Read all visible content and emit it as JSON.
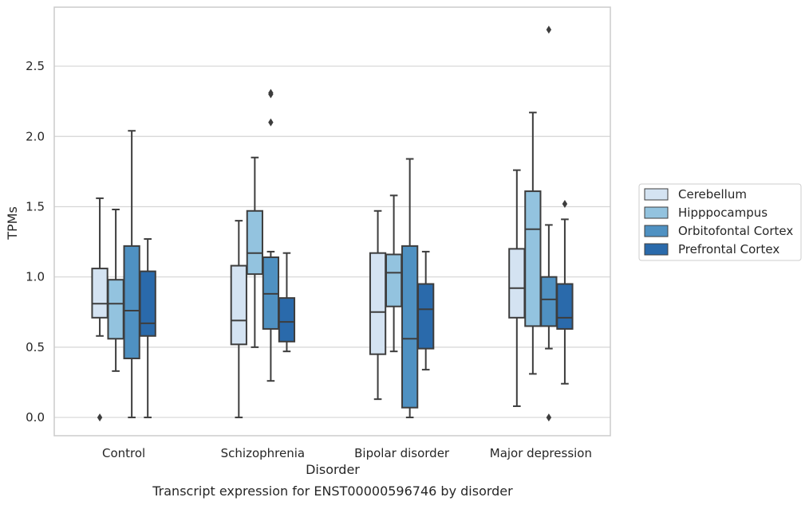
{
  "caption": "Transcript expression for ENST00000596746 by disorder",
  "chart_data": {
    "type": "box",
    "title": "",
    "xlabel": "Disorder",
    "ylabel": "TPMs",
    "ylim": [
      -0.13,
      2.92
    ],
    "yticks": [
      0.0,
      0.5,
      1.0,
      1.5,
      2.0,
      2.5
    ],
    "ytick_labels": [
      "0.0",
      "0.5",
      "1.0",
      "1.5",
      "2.0",
      "2.5"
    ],
    "grid": "horizontal",
    "legend_position": "right",
    "categories": [
      "Control",
      "Schizophrenia",
      "Bipolar disorder",
      "Major depression"
    ],
    "series": [
      {
        "name": "Cerebellum",
        "color": "#d4e3f2",
        "boxes": [
          {
            "whislo": 0.58,
            "q1": 0.71,
            "med": 0.81,
            "q3": 1.06,
            "whishi": 1.56,
            "fliers": [
              0.0
            ]
          },
          {
            "whislo": 0.0,
            "q1": 0.52,
            "med": 0.69,
            "q3": 1.08,
            "whishi": 1.4,
            "fliers": []
          },
          {
            "whislo": 0.13,
            "q1": 0.45,
            "med": 0.75,
            "q3": 1.17,
            "whishi": 1.47,
            "fliers": []
          },
          {
            "whislo": 0.08,
            "q1": 0.71,
            "med": 0.92,
            "q3": 1.2,
            "whishi": 1.76,
            "fliers": []
          }
        ]
      },
      {
        "name": "Hipppocampus",
        "color": "#93c3df",
        "boxes": [
          {
            "whislo": 0.33,
            "q1": 0.56,
            "med": 0.81,
            "q3": 0.98,
            "whishi": 1.48,
            "fliers": []
          },
          {
            "whislo": 0.5,
            "q1": 1.02,
            "med": 1.17,
            "q3": 1.47,
            "whishi": 1.85,
            "fliers": []
          },
          {
            "whislo": 0.47,
            "q1": 0.79,
            "med": 1.03,
            "q3": 1.16,
            "whishi": 1.58,
            "fliers": []
          },
          {
            "whislo": 0.31,
            "q1": 0.65,
            "med": 1.34,
            "q3": 1.61,
            "whishi": 2.17,
            "fliers": []
          }
        ]
      },
      {
        "name": "Orbitofontal Cortex",
        "color": "#4f91c2",
        "boxes": [
          {
            "whislo": 0.0,
            "q1": 0.42,
            "med": 0.76,
            "q3": 1.22,
            "whishi": 2.04,
            "fliers": []
          },
          {
            "whislo": 0.26,
            "q1": 0.63,
            "med": 0.88,
            "q3": 1.14,
            "whishi": 1.18,
            "fliers": [
              2.1,
              2.3,
              2.31
            ]
          },
          {
            "whislo": 0.0,
            "q1": 0.07,
            "med": 0.56,
            "q3": 1.22,
            "whishi": 1.84,
            "fliers": []
          },
          {
            "whislo": 0.49,
            "q1": 0.65,
            "med": 0.84,
            "q3": 1.0,
            "whishi": 1.37,
            "fliers": [
              0.0,
              2.76
            ]
          }
        ]
      },
      {
        "name": "Prefrontal Cortex",
        "color": "#2a6aab",
        "boxes": [
          {
            "whislo": 0.0,
            "q1": 0.58,
            "med": 0.67,
            "q3": 1.04,
            "whishi": 1.27,
            "fliers": []
          },
          {
            "whislo": 0.47,
            "q1": 0.54,
            "med": 0.68,
            "q3": 0.85,
            "whishi": 1.17,
            "fliers": []
          },
          {
            "whislo": 0.34,
            "q1": 0.49,
            "med": 0.77,
            "q3": 0.95,
            "whishi": 1.18,
            "fliers": []
          },
          {
            "whislo": 0.24,
            "q1": 0.63,
            "med": 0.71,
            "q3": 0.95,
            "whishi": 1.41,
            "fliers": [
              1.52
            ]
          }
        ]
      }
    ]
  }
}
